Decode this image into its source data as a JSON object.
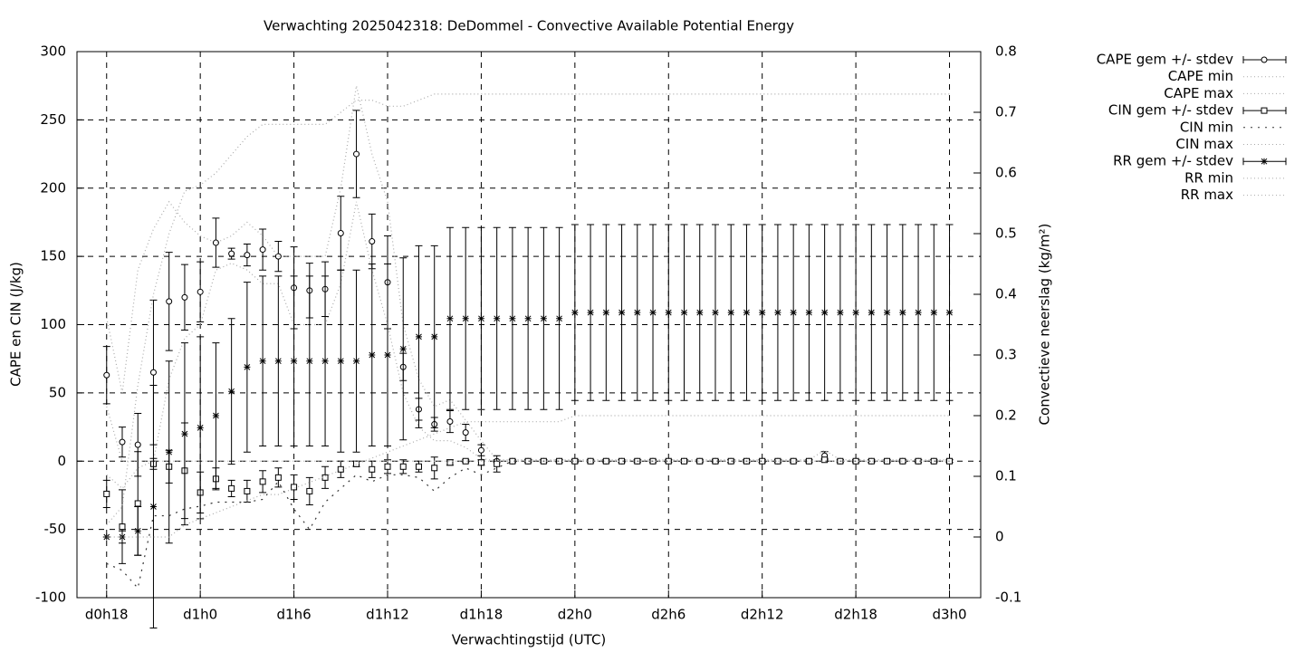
{
  "chart_data": {
    "type": "errorbar-line",
    "title": "Verwachting 2025042318: DeDommel - Convective Available Potential Energy",
    "x_label": "Verwachtingstijd (UTC)",
    "y_label": "CAPE en CIN (J/kg)",
    "y2_label": "Convectieve neerslag (kg/m²)",
    "x": [
      18,
      19,
      20,
      21,
      22,
      23,
      24,
      25,
      26,
      27,
      28,
      29,
      30,
      31,
      32,
      33,
      34,
      35,
      36,
      37,
      38,
      39,
      40,
      41,
      42,
      43,
      44,
      45,
      46,
      47,
      48,
      49,
      50,
      51,
      52,
      53,
      54,
      55,
      56,
      57,
      58,
      59,
      60,
      61,
      62,
      63,
      64,
      65,
      66,
      67,
      68,
      69,
      70,
      71,
      72
    ],
    "xlim": [
      16.1,
      74
    ],
    "xticks": [
      {
        "value": 18,
        "label": "d0h18"
      },
      {
        "value": 24,
        "label": "d1h0"
      },
      {
        "value": 30,
        "label": "d1h6"
      },
      {
        "value": 36,
        "label": "d1h12"
      },
      {
        "value": 42,
        "label": "d1h18"
      },
      {
        "value": 48,
        "label": "d2h0"
      },
      {
        "value": 54,
        "label": "d2h6"
      },
      {
        "value": 60,
        "label": "d2h12"
      },
      {
        "value": 66,
        "label": "d2h18"
      },
      {
        "value": 72,
        "label": "d3h0"
      }
    ],
    "ylim": [
      -100,
      300
    ],
    "yticks": [
      -100,
      -50,
      0,
      50,
      100,
      150,
      200,
      250,
      300
    ],
    "y2lim": [
      -0.1,
      0.8
    ],
    "y2ticks": [
      -0.1,
      0,
      0.1,
      0.2,
      0.3,
      0.4,
      0.5,
      0.6,
      0.7,
      0.8
    ],
    "grid": true,
    "series": [
      {
        "name": "CAPE gem +/- stdev",
        "color": "#000000",
        "marker": "circle",
        "values": [
          63,
          14,
          12,
          65,
          117,
          120,
          124,
          160,
          152,
          151,
          155,
          150,
          127,
          125,
          126,
          167,
          225,
          161,
          131,
          69,
          38,
          27,
          29,
          21,
          8,
          0,
          0,
          0,
          0,
          0,
          0,
          0,
          0,
          0,
          0,
          0,
          0,
          0,
          0,
          0,
          0,
          0,
          0,
          0,
          0,
          0,
          4,
          0,
          0,
          0,
          0,
          0,
          0,
          0,
          0
        ],
        "stdev": [
          21,
          11,
          23,
          53,
          36,
          24,
          22,
          18,
          4,
          8,
          15,
          11,
          30,
          20,
          20,
          27,
          32,
          20,
          34,
          10,
          8,
          5,
          8,
          6,
          4,
          1,
          1,
          1,
          1,
          1,
          1,
          1,
          1,
          1,
          1,
          1,
          1,
          1,
          1,
          1,
          1,
          1,
          1,
          1,
          1,
          1,
          3,
          1,
          1,
          1,
          1,
          1,
          1,
          1,
          1
        ]
      },
      {
        "name": "CAPE min",
        "color": "#aaaaaa",
        "dash": "dotted",
        "values": [
          40,
          0,
          0,
          0,
          60,
          90,
          100,
          140,
          145,
          140,
          130,
          130,
          100,
          100,
          100,
          130,
          190,
          140,
          100,
          50,
          25,
          15,
          15,
          10,
          2,
          0,
          0,
          0,
          0,
          0,
          0,
          0,
          0,
          0,
          0,
          0,
          0,
          0,
          0,
          0,
          0,
          0,
          0,
          0,
          0,
          0,
          0,
          0,
          0,
          0,
          0,
          0,
          0,
          0,
          0
        ]
      },
      {
        "name": "CAPE max",
        "color": "#aaaaaa",
        "dash": "dotted",
        "values": [
          105,
          50,
          140,
          170,
          190,
          175,
          165,
          160,
          165,
          175,
          165,
          150,
          150,
          150,
          150,
          200,
          275,
          225,
          190,
          100,
          60,
          40,
          45,
          30,
          15,
          1,
          1,
          1,
          1,
          1,
          1,
          1,
          1,
          1,
          1,
          1,
          1,
          1,
          1,
          1,
          1,
          1,
          1,
          1,
          1,
          1,
          8,
          1,
          1,
          1,
          1,
          1,
          1,
          1,
          1
        ]
      },
      {
        "name": "CIN gem +/- stdev",
        "color": "#000000",
        "marker": "square",
        "values": [
          -24,
          -48,
          -31,
          -2,
          -4,
          -7,
          -23,
          -13,
          -20,
          -22,
          -15,
          -12,
          -19,
          -22,
          -12,
          -6,
          -2,
          -6,
          -4,
          -4,
          -4,
          -5,
          -1,
          0,
          -1,
          -2,
          0,
          0,
          0,
          0,
          0,
          0,
          0,
          0,
          0,
          0,
          0,
          0,
          0,
          0,
          0,
          0,
          0,
          0,
          0,
          0,
          1,
          0,
          0,
          0,
          0,
          0,
          0,
          0,
          0
        ],
        "stdev": [
          10,
          27,
          38,
          4,
          12,
          35,
          15,
          8,
          6,
          8,
          8,
          7,
          9,
          10,
          8,
          6,
          2,
          6,
          5,
          5,
          4,
          8,
          2,
          1,
          2,
          6,
          1,
          1,
          1,
          1,
          1,
          1,
          1,
          1,
          1,
          1,
          1,
          1,
          1,
          1,
          1,
          1,
          1,
          1,
          1,
          1,
          1,
          1,
          1,
          1,
          1,
          1,
          1,
          1,
          1
        ]
      },
      {
        "name": "CIN min",
        "color": "#333333",
        "dash": "dotted-wide",
        "values": [
          -75,
          -80,
          -93,
          -40,
          -40,
          -35,
          -33,
          -30,
          -30,
          -30,
          -28,
          -15,
          -35,
          -50,
          -30,
          -20,
          -10,
          -15,
          -10,
          -10,
          -12,
          -22,
          -12,
          -5,
          -10,
          -5,
          0,
          0,
          0,
          0,
          0,
          0,
          0,
          0,
          0,
          0,
          0,
          0,
          0,
          0,
          0,
          0,
          0,
          0,
          0,
          0,
          0,
          0,
          0,
          0,
          0,
          0,
          0,
          0,
          0
        ]
      },
      {
        "name": "CIN max",
        "color": "#aaaaaa",
        "dash": "dotted",
        "values": [
          -10,
          -20,
          -5,
          0,
          0,
          0,
          0,
          0,
          0,
          0,
          0,
          0,
          0,
          0,
          0,
          0,
          0,
          0,
          0,
          0,
          0,
          0,
          0,
          0,
          0,
          0,
          0,
          0,
          0,
          0,
          0,
          0,
          0,
          0,
          0,
          0,
          0,
          0,
          0,
          0,
          0,
          0,
          0,
          0,
          0,
          0,
          0,
          0,
          0,
          0,
          0,
          0,
          0,
          0,
          0
        ]
      },
      {
        "name": "RR gem +/- stdev",
        "color": "#000000",
        "marker": "star",
        "axis": "y2",
        "values": [
          0,
          0,
          0.01,
          0.05,
          0.14,
          0.17,
          0.18,
          0.2,
          0.24,
          0.28,
          0.29,
          0.29,
          0.29,
          0.29,
          0.29,
          0.29,
          0.29,
          0.3,
          0.3,
          0.31,
          0.33,
          0.33,
          0.36,
          0.36,
          0.36,
          0.36,
          0.36,
          0.36,
          0.36,
          0.36,
          0.37,
          0.37,
          0.37,
          0.37,
          0.37,
          0.37,
          0.37,
          0.37,
          0.37,
          0.37,
          0.37,
          0.37,
          0.37,
          0.37,
          0.37,
          0.37,
          0.37,
          0.37,
          0.37,
          0.37,
          0.37,
          0.37,
          0.37,
          0.37,
          0.37
        ],
        "stdev": [
          0,
          0.01,
          0.04,
          0.2,
          0.15,
          0.15,
          0.15,
          0.12,
          0.12,
          0.14,
          0.14,
          0.14,
          0.14,
          0.14,
          0.14,
          0.15,
          0.15,
          0.15,
          0.15,
          0.15,
          0.15,
          0.15,
          0.15,
          0.15,
          0.15,
          0.15,
          0.15,
          0.15,
          0.15,
          0.15,
          0.145,
          0.145,
          0.145,
          0.145,
          0.145,
          0.145,
          0.145,
          0.145,
          0.145,
          0.145,
          0.145,
          0.145,
          0.145,
          0.145,
          0.145,
          0.145,
          0.145,
          0.145,
          0.145,
          0.145,
          0.145,
          0.145,
          0.145,
          0.145,
          0.145
        ]
      },
      {
        "name": "RR min",
        "color": "#aaaaaa",
        "dash": "dotted",
        "axis": "y2",
        "values": [
          0,
          0,
          0,
          0,
          0,
          0.02,
          0.03,
          0.04,
          0.05,
          0.06,
          0.07,
          0.07,
          0.08,
          0.09,
          0.1,
          0.11,
          0.12,
          0.13,
          0.14,
          0.15,
          0.16,
          0.17,
          0.18,
          0.19,
          0.19,
          0.19,
          0.19,
          0.19,
          0.19,
          0.19,
          0.2,
          0.2,
          0.2,
          0.2,
          0.2,
          0.2,
          0.2,
          0.2,
          0.2,
          0.2,
          0.2,
          0.2,
          0.2,
          0.2,
          0.2,
          0.2,
          0.2,
          0.2,
          0.2,
          0.2,
          0.2,
          0.2,
          0.2,
          0.2,
          0.2
        ]
      },
      {
        "name": "RR max",
        "color": "#aaaaaa",
        "dash": "dotted",
        "axis": "y2",
        "values": [
          0.02,
          0.05,
          0.25,
          0.4,
          0.5,
          0.57,
          0.58,
          0.6,
          0.63,
          0.66,
          0.68,
          0.68,
          0.68,
          0.68,
          0.68,
          0.7,
          0.72,
          0.72,
          0.71,
          0.71,
          0.72,
          0.73,
          0.73,
          0.73,
          0.73,
          0.73,
          0.73,
          0.73,
          0.73,
          0.73,
          0.73,
          0.73,
          0.73,
          0.73,
          0.73,
          0.73,
          0.73,
          0.73,
          0.73,
          0.73,
          0.73,
          0.73,
          0.73,
          0.73,
          0.73,
          0.73,
          0.73,
          0.73,
          0.73,
          0.73,
          0.73,
          0.73,
          0.73,
          0.73,
          0.73
        ]
      }
    ]
  }
}
